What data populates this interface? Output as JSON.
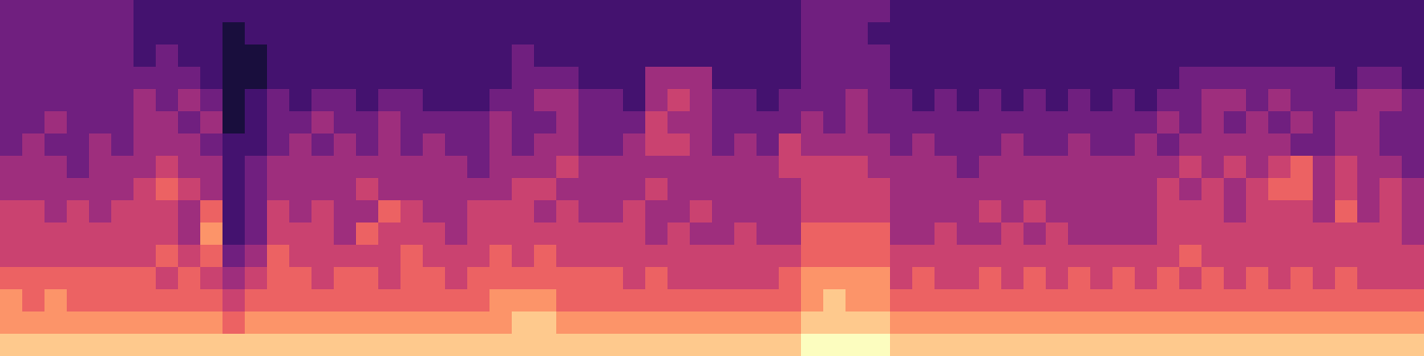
{
  "chart_data": {
    "type": "heatmap",
    "tick_labels": false,
    "xlim": [
      0,
      64
    ],
    "ylim": [
      0,
      16
    ],
    "vlim": [
      0,
      9
    ],
    "cells": [
      [
        3,
        3,
        3,
        3,
        3,
        3,
        2,
        2,
        2,
        2,
        2,
        2,
        2,
        2,
        2,
        2,
        2,
        2,
        2,
        2,
        2,
        2,
        2,
        2,
        2,
        2,
        2,
        2,
        2,
        2,
        2,
        2,
        2,
        2,
        2,
        2,
        3,
        3,
        3,
        3,
        2,
        2,
        2,
        2,
        2,
        2,
        2,
        2,
        2,
        2,
        2,
        2,
        2,
        2,
        2,
        2,
        2,
        2,
        2,
        2,
        2,
        2,
        2,
        2
      ],
      [
        3,
        3,
        3,
        3,
        3,
        3,
        2,
        2,
        2,
        2,
        1,
        2,
        2,
        2,
        2,
        2,
        2,
        2,
        2,
        2,
        2,
        2,
        2,
        2,
        2,
        2,
        2,
        2,
        2,
        2,
        2,
        2,
        2,
        2,
        2,
        2,
        3,
        3,
        3,
        2,
        2,
        2,
        2,
        2,
        2,
        2,
        2,
        2,
        2,
        2,
        2,
        2,
        2,
        2,
        2,
        2,
        2,
        2,
        2,
        2,
        2,
        2,
        2,
        2
      ],
      [
        3,
        3,
        3,
        3,
        3,
        3,
        2,
        3,
        2,
        2,
        1,
        1,
        2,
        2,
        2,
        2,
        2,
        2,
        2,
        2,
        2,
        2,
        2,
        3,
        2,
        2,
        2,
        2,
        2,
        2,
        2,
        2,
        2,
        2,
        2,
        2,
        3,
        3,
        3,
        3,
        2,
        2,
        2,
        2,
        2,
        2,
        2,
        2,
        2,
        2,
        2,
        2,
        2,
        2,
        2,
        2,
        2,
        2,
        2,
        2,
        2,
        2,
        2,
        2
      ],
      [
        3,
        3,
        3,
        3,
        3,
        3,
        3,
        3,
        3,
        2,
        1,
        1,
        2,
        2,
        2,
        2,
        2,
        2,
        2,
        2,
        2,
        2,
        2,
        3,
        3,
        3,
        2,
        2,
        2,
        4,
        4,
        4,
        2,
        2,
        2,
        2,
        3,
        3,
        3,
        3,
        2,
        2,
        2,
        2,
        2,
        2,
        2,
        2,
        2,
        2,
        2,
        2,
        2,
        3,
        3,
        3,
        3,
        3,
        3,
        3,
        2,
        3,
        3,
        2
      ],
      [
        3,
        3,
        3,
        3,
        3,
        3,
        4,
        3,
        4,
        3,
        1,
        2,
        3,
        2,
        3,
        3,
        2,
        3,
        3,
        2,
        2,
        2,
        3,
        3,
        4,
        4,
        3,
        3,
        2,
        4,
        5,
        4,
        3,
        3,
        2,
        3,
        3,
        3,
        4,
        3,
        3,
        2,
        3,
        2,
        3,
        2,
        3,
        2,
        3,
        2,
        3,
        2,
        3,
        3,
        4,
        4,
        3,
        4,
        3,
        3,
        3,
        4,
        4,
        3
      ],
      [
        3,
        3,
        4,
        3,
        3,
        3,
        4,
        4,
        3,
        4,
        1,
        2,
        3,
        3,
        4,
        3,
        3,
        4,
        3,
        3,
        3,
        3,
        4,
        3,
        3,
        4,
        3,
        3,
        3,
        5,
        4,
        4,
        3,
        3,
        3,
        3,
        4,
        3,
        4,
        3,
        3,
        3,
        3,
        3,
        3,
        3,
        3,
        3,
        3,
        3,
        3,
        3,
        4,
        3,
        4,
        3,
        4,
        3,
        4,
        3,
        4,
        4,
        3,
        3
      ],
      [
        3,
        4,
        3,
        3,
        4,
        3,
        4,
        4,
        4,
        3,
        2,
        2,
        3,
        4,
        3,
        4,
        3,
        4,
        3,
        4,
        3,
        3,
        4,
        3,
        4,
        4,
        3,
        3,
        4,
        5,
        5,
        4,
        3,
        4,
        3,
        5,
        4,
        4,
        4,
        4,
        3,
        4,
        3,
        3,
        3,
        4,
        3,
        3,
        4,
        3,
        3,
        4,
        3,
        4,
        4,
        4,
        4,
        4,
        3,
        3,
        4,
        4,
        3,
        3
      ],
      [
        4,
        4,
        4,
        3,
        4,
        4,
        4,
        5,
        4,
        4,
        2,
        3,
        4,
        4,
        4,
        4,
        4,
        4,
        4,
        4,
        4,
        3,
        4,
        4,
        4,
        5,
        4,
        4,
        4,
        4,
        4,
        4,
        4,
        4,
        4,
        5,
        5,
        5,
        5,
        4,
        4,
        4,
        4,
        3,
        4,
        4,
        4,
        4,
        4,
        4,
        4,
        4,
        4,
        5,
        4,
        5,
        4,
        5,
        6,
        4,
        5,
        4,
        4,
        3
      ],
      [
        4,
        4,
        4,
        4,
        4,
        4,
        5,
        6,
        5,
        4,
        2,
        3,
        4,
        4,
        4,
        4,
        5,
        4,
        4,
        4,
        4,
        4,
        4,
        5,
        5,
        4,
        4,
        4,
        4,
        5,
        4,
        4,
        4,
        4,
        4,
        4,
        5,
        5,
        5,
        5,
        4,
        4,
        4,
        4,
        4,
        4,
        4,
        4,
        4,
        4,
        4,
        4,
        5,
        4,
        5,
        4,
        5,
        6,
        6,
        4,
        5,
        4,
        5,
        4
      ],
      [
        5,
        5,
        4,
        5,
        4,
        5,
        5,
        5,
        4,
        6,
        2,
        3,
        5,
        4,
        5,
        4,
        4,
        6,
        5,
        4,
        4,
        5,
        5,
        5,
        4,
        5,
        4,
        4,
        5,
        4,
        4,
        5,
        4,
        4,
        4,
        4,
        5,
        5,
        5,
        5,
        4,
        4,
        4,
        4,
        5,
        4,
        5,
        4,
        4,
        4,
        4,
        4,
        5,
        5,
        5,
        4,
        5,
        5,
        5,
        4,
        6,
        4,
        5,
        4
      ],
      [
        5,
        5,
        5,
        5,
        5,
        5,
        5,
        5,
        4,
        7,
        2,
        3,
        5,
        5,
        5,
        4,
        6,
        5,
        5,
        5,
        4,
        5,
        5,
        5,
        5,
        5,
        5,
        5,
        5,
        4,
        5,
        4,
        4,
        5,
        4,
        4,
        6,
        6,
        6,
        6,
        4,
        4,
        5,
        4,
        4,
        5,
        4,
        5,
        4,
        4,
        4,
        4,
        5,
        5,
        5,
        5,
        5,
        5,
        5,
        5,
        5,
        5,
        5,
        4
      ],
      [
        5,
        5,
        5,
        5,
        5,
        5,
        5,
        6,
        5,
        6,
        3,
        4,
        6,
        5,
        5,
        5,
        5,
        5,
        6,
        5,
        5,
        5,
        6,
        5,
        6,
        5,
        5,
        5,
        5,
        5,
        5,
        5,
        5,
        5,
        5,
        5,
        6,
        6,
        6,
        6,
        5,
        5,
        5,
        5,
        5,
        5,
        5,
        5,
        5,
        5,
        5,
        5,
        5,
        6,
        5,
        5,
        5,
        5,
        5,
        5,
        5,
        5,
        5,
        5
      ],
      [
        6,
        6,
        6,
        6,
        6,
        6,
        6,
        5,
        6,
        5,
        4,
        5,
        6,
        6,
        5,
        6,
        6,
        5,
        6,
        6,
        5,
        6,
        6,
        6,
        6,
        6,
        6,
        6,
        5,
        6,
        5,
        5,
        5,
        5,
        5,
        6,
        7,
        7,
        7,
        7,
        5,
        6,
        5,
        5,
        6,
        5,
        6,
        5,
        6,
        5,
        6,
        5,
        6,
        5,
        6,
        5,
        6,
        5,
        6,
        5,
        6,
        5,
        5,
        5
      ],
      [
        7,
        6,
        7,
        6,
        6,
        6,
        6,
        6,
        6,
        6,
        5,
        6,
        6,
        6,
        6,
        6,
        6,
        6,
        6,
        6,
        6,
        6,
        7,
        7,
        7,
        6,
        6,
        6,
        6,
        6,
        6,
        6,
        6,
        6,
        6,
        6,
        7,
        8,
        7,
        7,
        6,
        6,
        6,
        6,
        6,
        6,
        6,
        6,
        6,
        6,
        6,
        6,
        6,
        6,
        6,
        6,
        6,
        6,
        6,
        6,
        6,
        6,
        6,
        6
      ],
      [
        7,
        7,
        7,
        7,
        7,
        7,
        7,
        7,
        7,
        7,
        6,
        7,
        7,
        7,
        7,
        7,
        7,
        7,
        7,
        7,
        7,
        7,
        7,
        8,
        8,
        7,
        7,
        7,
        7,
        7,
        7,
        7,
        7,
        7,
        7,
        7,
        8,
        8,
        8,
        8,
        7,
        7,
        7,
        7,
        7,
        7,
        7,
        7,
        7,
        7,
        7,
        7,
        7,
        7,
        7,
        7,
        7,
        7,
        7,
        7,
        7,
        7,
        7,
        7
      ],
      [
        8,
        8,
        8,
        8,
        8,
        8,
        8,
        8,
        8,
        8,
        8,
        8,
        8,
        8,
        8,
        8,
        8,
        8,
        8,
        8,
        8,
        8,
        8,
        8,
        8,
        8,
        8,
        8,
        8,
        8,
        8,
        8,
        8,
        8,
        8,
        8,
        9,
        9,
        9,
        9,
        8,
        8,
        8,
        8,
        8,
        8,
        8,
        8,
        8,
        8,
        8,
        8,
        8,
        8,
        8,
        8,
        8,
        8,
        8,
        8,
        8,
        8,
        8,
        8
      ]
    ]
  }
}
